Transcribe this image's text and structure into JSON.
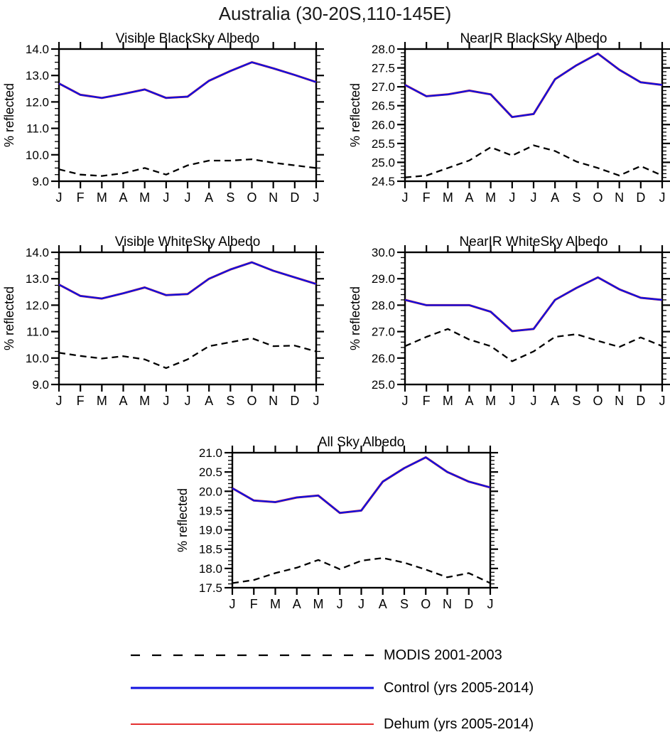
{
  "title": "Australia (30-20S,110-145E)",
  "colors": {
    "control": "#1212e0",
    "dehum": "#e01212",
    "modis": "#000000",
    "axis": "#000000"
  },
  "x_labels": [
    "J",
    "F",
    "M",
    "A",
    "M",
    "J",
    "J",
    "A",
    "S",
    "O",
    "N",
    "D",
    "J"
  ],
  "ylabel": "% reflected",
  "legend": {
    "items": [
      {
        "label": "MODIS 2001-2003",
        "style": "dashed-black"
      },
      {
        "label": "Control (yrs 2005-2014)",
        "style": "blue"
      },
      {
        "label": "Dehum (yrs 2005-2014)",
        "style": "red"
      }
    ]
  },
  "chart_data": [
    {
      "type": "line",
      "id": "visible-blacksky",
      "title": "Visible BlackSky Albedo",
      "xlabel": "",
      "ylabel": "% reflected",
      "ylim": [
        9.0,
        14.0
      ],
      "ytick_step": 1.0,
      "minor_step": 0.25,
      "ytick_labels": [
        "9.0",
        "10.0",
        "11.0",
        "12.0",
        "13.0",
        "14.0"
      ],
      "categories": [
        "J",
        "F",
        "M",
        "A",
        "M",
        "J",
        "J",
        "A",
        "S",
        "O",
        "N",
        "D",
        "J"
      ],
      "grid": false,
      "series": [
        {
          "name": "MODIS 2001-2003",
          "style": "dashed-black",
          "values": [
            9.45,
            9.25,
            9.2,
            9.3,
            9.5,
            9.25,
            9.6,
            9.78,
            9.78,
            9.83,
            9.7,
            9.6,
            9.5
          ]
        },
        {
          "name": "Dehum (yrs 2005-2014)",
          "style": "red",
          "values": [
            12.7,
            12.27,
            12.15,
            12.3,
            12.47,
            12.15,
            12.2,
            12.8,
            13.17,
            13.5,
            13.27,
            13.02,
            12.75
          ]
        },
        {
          "name": "Control (yrs 2005-2014)",
          "style": "blue",
          "values": [
            12.7,
            12.27,
            12.15,
            12.3,
            12.47,
            12.15,
            12.2,
            12.8,
            13.17,
            13.5,
            13.27,
            13.02,
            12.75
          ]
        }
      ]
    },
    {
      "type": "line",
      "id": "nearir-blacksky",
      "title": "NearIR BlackSky Albedo",
      "xlabel": "",
      "ylabel": "% reflected",
      "ylim": [
        24.5,
        28.0
      ],
      "ytick_step": 0.5,
      "minor_step": 0.1,
      "ytick_labels": [
        "24.5",
        "25.0",
        "25.5",
        "26.0",
        "26.5",
        "27.0",
        "27.5",
        "28.0"
      ],
      "categories": [
        "J",
        "F",
        "M",
        "A",
        "M",
        "J",
        "J",
        "A",
        "S",
        "O",
        "N",
        "D",
        "J"
      ],
      "grid": false,
      "series": [
        {
          "name": "MODIS 2001-2003",
          "style": "dashed-black",
          "values": [
            24.6,
            24.65,
            24.85,
            25.05,
            25.4,
            25.18,
            25.45,
            25.3,
            25.02,
            24.85,
            24.65,
            24.9,
            24.65
          ]
        },
        {
          "name": "Dehum (yrs 2005-2014)",
          "style": "red",
          "values": [
            27.05,
            26.75,
            26.8,
            26.9,
            26.8,
            26.2,
            26.28,
            27.2,
            27.57,
            27.88,
            27.45,
            27.12,
            27.05
          ]
        },
        {
          "name": "Control (yrs 2005-2014)",
          "style": "blue",
          "values": [
            27.05,
            26.75,
            26.8,
            26.9,
            26.8,
            26.2,
            26.28,
            27.2,
            27.57,
            27.88,
            27.45,
            27.12,
            27.05
          ]
        }
      ]
    },
    {
      "type": "line",
      "id": "visible-whitesky",
      "title": "Visible WhiteSky Albedo",
      "xlabel": "",
      "ylabel": "% reflected",
      "ylim": [
        9.0,
        14.0
      ],
      "ytick_step": 1.0,
      "minor_step": 0.25,
      "ytick_labels": [
        "9.0",
        "10.0",
        "11.0",
        "12.0",
        "13.0",
        "14.0"
      ],
      "categories": [
        "J",
        "F",
        "M",
        "A",
        "M",
        "J",
        "J",
        "A",
        "S",
        "O",
        "N",
        "D",
        "J"
      ],
      "grid": false,
      "series": [
        {
          "name": "MODIS 2001-2003",
          "style": "dashed-black",
          "values": [
            10.2,
            10.08,
            9.98,
            10.07,
            9.95,
            9.62,
            9.95,
            10.45,
            10.6,
            10.75,
            10.45,
            10.47,
            10.25
          ]
        },
        {
          "name": "Dehum (yrs 2005-2014)",
          "style": "red",
          "values": [
            12.78,
            12.35,
            12.25,
            12.45,
            12.67,
            12.38,
            12.42,
            13.0,
            13.35,
            13.62,
            13.3,
            13.05,
            12.8
          ]
        },
        {
          "name": "Control (yrs 2005-2014)",
          "style": "blue",
          "values": [
            12.78,
            12.35,
            12.25,
            12.45,
            12.67,
            12.38,
            12.42,
            13.0,
            13.35,
            13.62,
            13.3,
            13.05,
            12.8
          ]
        }
      ]
    },
    {
      "type": "line",
      "id": "nearir-whitesky",
      "title": "NearIR WhiteSky Albedo",
      "xlabel": "",
      "ylabel": "% reflected",
      "ylim": [
        25.0,
        30.0
      ],
      "ytick_step": 1.0,
      "minor_step": 0.2,
      "ytick_labels": [
        "25.0",
        "26.0",
        "27.0",
        "28.0",
        "29.0",
        "30.0"
      ],
      "categories": [
        "J",
        "F",
        "M",
        "A",
        "M",
        "J",
        "J",
        "A",
        "S",
        "O",
        "N",
        "D",
        "J"
      ],
      "grid": false,
      "series": [
        {
          "name": "MODIS 2001-2003",
          "style": "dashed-black",
          "values": [
            26.45,
            26.8,
            27.1,
            26.7,
            26.45,
            25.88,
            26.25,
            26.8,
            26.9,
            26.65,
            26.42,
            26.78,
            26.45
          ]
        },
        {
          "name": "Dehum (yrs 2005-2014)",
          "style": "red",
          "values": [
            28.2,
            28.0,
            28.0,
            28.0,
            27.75,
            27.02,
            27.1,
            28.2,
            28.65,
            29.05,
            28.6,
            28.28,
            28.2
          ]
        },
        {
          "name": "Control (yrs 2005-2014)",
          "style": "blue",
          "values": [
            28.2,
            28.0,
            28.0,
            28.0,
            27.75,
            27.02,
            27.1,
            28.2,
            28.65,
            29.05,
            28.6,
            28.28,
            28.2
          ]
        }
      ]
    },
    {
      "type": "line",
      "id": "allsky",
      "title": "All Sky Albedo",
      "xlabel": "",
      "ylabel": "% reflected",
      "ylim": [
        17.5,
        21.0
      ],
      "ytick_step": 0.5,
      "minor_step": 0.1,
      "ytick_labels": [
        "17.5",
        "18.0",
        "18.5",
        "19.0",
        "19.5",
        "20.0",
        "20.5",
        "21.0"
      ],
      "categories": [
        "J",
        "F",
        "M",
        "A",
        "M",
        "J",
        "J",
        "A",
        "S",
        "O",
        "N",
        "D",
        "J"
      ],
      "grid": false,
      "series": [
        {
          "name": "MODIS 2001-2003",
          "style": "dashed-black",
          "values": [
            17.62,
            17.7,
            17.88,
            18.02,
            18.22,
            17.98,
            18.2,
            18.27,
            18.15,
            17.97,
            17.77,
            17.88,
            17.62
          ]
        },
        {
          "name": "Dehum (yrs 2005-2014)",
          "style": "red",
          "values": [
            20.08,
            19.76,
            19.72,
            19.84,
            19.89,
            19.44,
            19.5,
            20.25,
            20.6,
            20.88,
            20.5,
            20.25,
            20.1
          ]
        },
        {
          "name": "Control (yrs 2005-2014)",
          "style": "blue",
          "values": [
            20.08,
            19.76,
            19.72,
            19.84,
            19.89,
            19.44,
            19.5,
            20.25,
            20.6,
            20.88,
            20.5,
            20.25,
            20.1
          ]
        }
      ]
    }
  ]
}
